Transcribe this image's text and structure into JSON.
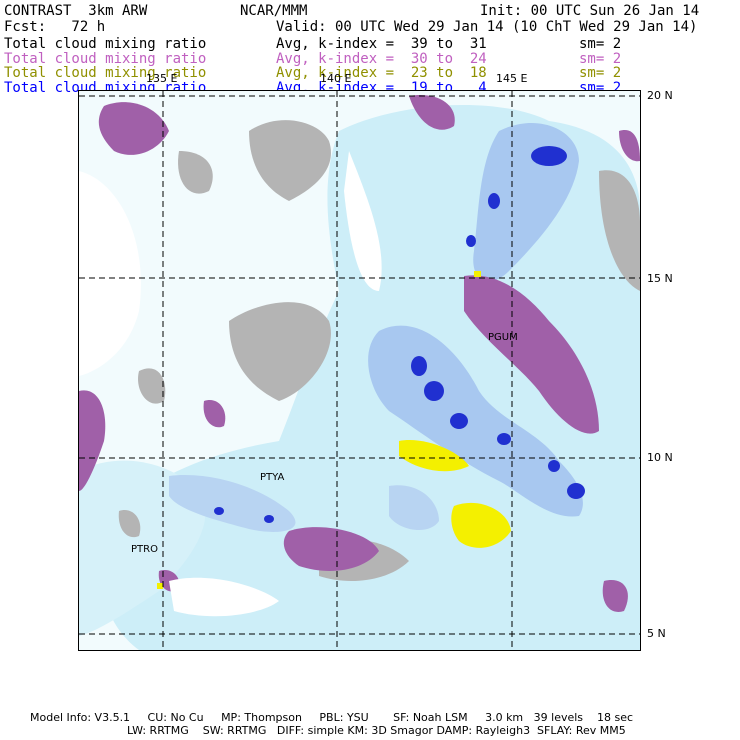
{
  "header": {
    "title": "CONTRAST  3km ARW",
    "center": "NCAR/MMM",
    "init": "Init: 00 UTC Sun 26 Jan 14",
    "fcst": "Fcst:   72 h",
    "valid": "Valid: 00 UTC Wed 29 Jan 14 (10 ChT Wed 29 Jan 14)"
  },
  "legend": [
    {
      "name": "Total cloud mixing ratio",
      "range": "Avg, k-index =  39 to  31",
      "sm": "sm= 2",
      "color": "#000000"
    },
    {
      "name": "Total cloud mixing ratio",
      "range": "Avg, k-index =  30 to  24",
      "sm": "sm= 2",
      "color": "#c060c0"
    },
    {
      "name": "Total cloud mixing ratio",
      "range": "Avg, k-index =  23 to  18",
      "sm": "sm= 2",
      "color": "#909000"
    },
    {
      "name": "Total cloud mixing ratio",
      "range": "Avg, k-index =  19 to   4",
      "sm": "sm= 2",
      "color": "#0000ff"
    }
  ],
  "map": {
    "lon_labels": [
      "135 E",
      "140 E",
      "145 E"
    ],
    "lat_labels": [
      "20 N",
      "15 N",
      "10 N",
      "5 N"
    ],
    "stations": [
      "PGUM",
      "PTYA",
      "PTRO"
    ],
    "colors": {
      "ocean": "#f2fbfd",
      "light_blue": "#cdeef8",
      "mid_blue": "#a8c8f0",
      "dark_blue": "#2030d0",
      "gray": "#b4b4b4",
      "purple": "#a060a8",
      "yellow": "#f4f000"
    }
  },
  "footer": {
    "line1": "Model Info: V3.5.1     CU: No Cu     MP: Thompson     PBL: YSU       SF: Noah LSM     3.0 km   39 levels    18 sec",
    "line2": "LW: RRTMG    SW: RRTMG   DIFF: simple KM: 3D Smagor DAMP: Rayleigh3  SFLAY: Rev MM5"
  }
}
